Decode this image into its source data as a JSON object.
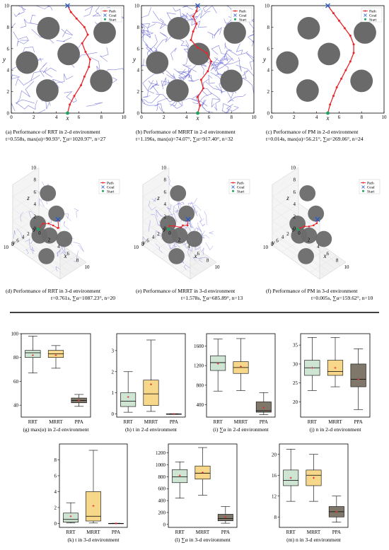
{
  "chart_data": [
    {
      "type": "scatter",
      "panel": "a",
      "style": "2d",
      "path": [
        [
          5,
          0
        ],
        [
          5.2,
          0.8
        ],
        [
          5.6,
          1.6
        ],
        [
          6.2,
          2.6
        ],
        [
          6.5,
          3.4
        ],
        [
          6.9,
          4.3
        ],
        [
          7.0,
          5.0
        ],
        [
          6.6,
          5.7
        ],
        [
          6.3,
          6.5
        ],
        [
          6.8,
          7.3
        ],
        [
          6.5,
          8.0
        ],
        [
          5.8,
          8.8
        ],
        [
          5.3,
          9.4
        ],
        [
          5,
          10
        ]
      ],
      "obstacles": [
        [
          3.3,
          7.9
        ],
        [
          8.3,
          7.5
        ],
        [
          1.4,
          4.7
        ],
        [
          5.1,
          5.5
        ],
        [
          8.0,
          3.0
        ],
        [
          3.2,
          2.1
        ]
      ],
      "radius": 1,
      "xlim": [
        0,
        10
      ],
      "ylim": [
        0,
        10
      ],
      "xticks": [
        0,
        2,
        4,
        6,
        8,
        10
      ],
      "yticks": [
        0,
        2,
        4,
        6,
        8,
        10
      ],
      "xlabel": "x",
      "ylabel": "y",
      "legend": [
        "Path",
        "Goal",
        "Start"
      ],
      "caption": "(a) Performance of RRT in 2-d environment",
      "caption2": "t=0.558s, max(α)=90.93°, ∑α=1020.97°, n=27"
    },
    {
      "type": "scatter",
      "panel": "b",
      "style": "2d",
      "path": [
        [
          5,
          0
        ],
        [
          5.2,
          0.7
        ],
        [
          5.0,
          1.5
        ],
        [
          5.5,
          2.3
        ],
        [
          5.3,
          3.1
        ],
        [
          5.9,
          3.9
        ],
        [
          6.2,
          4.8
        ],
        [
          5.8,
          5.6
        ],
        [
          5.0,
          6.1
        ],
        [
          4.4,
          6.8
        ],
        [
          4.6,
          7.6
        ],
        [
          4.9,
          8.3
        ],
        [
          4.6,
          9.0
        ],
        [
          4.9,
          9.5
        ],
        [
          5,
          10
        ]
      ],
      "obstacles": [
        [
          3.3,
          7.9
        ],
        [
          8.3,
          7.5
        ],
        [
          1.4,
          4.7
        ],
        [
          5.1,
          5.5
        ],
        [
          8.0,
          3.0
        ],
        [
          3.2,
          2.1
        ]
      ],
      "radius": 1,
      "xlim": [
        0,
        10
      ],
      "ylim": [
        0,
        10
      ],
      "xticks": [
        0,
        2,
        4,
        6,
        8,
        10
      ],
      "yticks": [
        0,
        2,
        4,
        6,
        8,
        10
      ],
      "xlabel": "x",
      "ylabel": "y",
      "legend": [
        "Path",
        "Goal",
        "Start"
      ],
      "caption": "(b) Performance of MRRT in 2-d environment",
      "caption2": "t=1.196s, max(α)=74.07°, ∑α=917.40°, n=32"
    },
    {
      "type": "scatter",
      "panel": "c",
      "style": "2d",
      "path": [
        [
          5,
          0
        ],
        [
          5.2,
          0.8
        ],
        [
          5.5,
          1.6
        ],
        [
          5.8,
          2.4
        ],
        [
          6.2,
          3.2
        ],
        [
          6.6,
          4.0
        ],
        [
          7.0,
          4.8
        ],
        [
          7.3,
          5.6
        ],
        [
          7.3,
          6.4
        ],
        [
          7.0,
          7.2
        ],
        [
          6.5,
          7.9
        ],
        [
          6.0,
          8.6
        ],
        [
          5.5,
          9.3
        ],
        [
          5,
          10
        ]
      ],
      "obstacles": [
        [
          3.3,
          7.9
        ],
        [
          8.3,
          7.5
        ],
        [
          1.4,
          4.7
        ],
        [
          5.1,
          5.5
        ],
        [
          8.0,
          3.0
        ],
        [
          3.2,
          2.1
        ]
      ],
      "radius": 1,
      "xlim": [
        0,
        10
      ],
      "ylim": [
        0,
        10
      ],
      "xticks": [
        0,
        2,
        4,
        6,
        8,
        10
      ],
      "yticks": [
        0,
        2,
        4,
        6,
        8,
        10
      ],
      "xlabel": "x",
      "ylabel": "y",
      "legend": [
        "Path",
        "Goal",
        "Start"
      ],
      "caption": "(c) Performance of PM in 2-d environment",
      "caption2": "t=0.014s, max(α)=56.21°, ∑α=269.06°, n=24"
    },
    {
      "type": "scatter",
      "panel": "d",
      "style": "3d",
      "path": [
        [
          1,
          2,
          1
        ],
        [
          2.5,
          3,
          3
        ],
        [
          4,
          3.5,
          4
        ],
        [
          5.5,
          4.5,
          4.8
        ],
        [
          7,
          5.5,
          5.5
        ],
        [
          8,
          7,
          6.5
        ],
        [
          9,
          9,
          9
        ]
      ],
      "spheres": [
        [
          3,
          2,
          8
        ],
        [
          7,
          6,
          8
        ],
        [
          2,
          4,
          3
        ],
        [
          5,
          5,
          3
        ],
        [
          7,
          3,
          3
        ],
        [
          4,
          7,
          3
        ],
        [
          6,
          8,
          1
        ]
      ],
      "radius": 1.2,
      "range": [
        0,
        10
      ],
      "ticks": [
        0,
        2,
        4,
        6,
        8,
        10
      ],
      "zticks": [
        0,
        2,
        4,
        6,
        8,
        10
      ],
      "xlabel": "x",
      "ylabel": "y",
      "zlabel": "z",
      "legend": [
        "Path",
        "Goal",
        "Start"
      ],
      "caption": "(d) Performance of RRT in 3-d environment",
      "caption2": "t=0.761s, ∑α=1087.23°, n=20"
    },
    {
      "type": "scatter",
      "panel": "e",
      "style": "3d",
      "path": [
        [
          1,
          2,
          1
        ],
        [
          2,
          3.5,
          2.5
        ],
        [
          3.5,
          4.2,
          3.5
        ],
        [
          5,
          4.5,
          4.2
        ],
        [
          6,
          5.6,
          5.4
        ],
        [
          7.5,
          6.5,
          6.5
        ],
        [
          9,
          9,
          9
        ]
      ],
      "spheres": [
        [
          3,
          2,
          8
        ],
        [
          7,
          6,
          8
        ],
        [
          2,
          4,
          3
        ],
        [
          5,
          5,
          3
        ],
        [
          7,
          3,
          3
        ],
        [
          4,
          7,
          3
        ],
        [
          6,
          8,
          1
        ]
      ],
      "radius": 1.2,
      "range": [
        0,
        10
      ],
      "ticks": [
        0,
        2,
        4,
        6,
        8,
        10
      ],
      "zticks": [
        0,
        2,
        4,
        6,
        8,
        10
      ],
      "xlabel": "x",
      "ylabel": "y",
      "zlabel": "z",
      "legend": [
        "Path",
        "Goal",
        "Start"
      ],
      "caption": "(e) Performance of MRRT in 3-d environment",
      "caption2": "t=1.578s, ∑α=685.89°, n=13"
    },
    {
      "type": "scatter",
      "panel": "f",
      "style": "3d",
      "path": [
        [
          1,
          2,
          1
        ],
        [
          2,
          3,
          2
        ],
        [
          3.5,
          4,
          3.4
        ],
        [
          5,
          5,
          4.5
        ],
        [
          6.5,
          6,
          5.8
        ],
        [
          8,
          7.5,
          7.4
        ],
        [
          9,
          9,
          9
        ]
      ],
      "spheres": [
        [
          3,
          2,
          8
        ],
        [
          7,
          6,
          8
        ],
        [
          2,
          4,
          3
        ],
        [
          5,
          5,
          3
        ],
        [
          7,
          3,
          3
        ],
        [
          4,
          7,
          3
        ],
        [
          6,
          8,
          1
        ]
      ],
      "radius": 1.2,
      "range": [
        0,
        10
      ],
      "ticks": [
        0,
        2,
        4,
        6,
        8,
        10
      ],
      "zticks": [
        0,
        2,
        4,
        6,
        8,
        10
      ],
      "xlabel": "x",
      "ylabel": "y",
      "zlabel": "z",
      "legend": [
        "Path",
        "Goal",
        "Start"
      ],
      "caption": "(f) Performance of PM in 3-d environment",
      "caption2": "t=0.005s, ∑α=159.62°, n=10"
    },
    {
      "type": "box",
      "panel": "g",
      "categories": [
        "RRT",
        "MRRT",
        "PPA"
      ],
      "ylim": [
        30,
        100
      ],
      "yticks": [
        40,
        60,
        80,
        100
      ],
      "boxes": [
        {
          "min": 67,
          "q1": 80,
          "median": 84,
          "q3": 86,
          "max": 98,
          "mean": 82
        },
        {
          "min": 71,
          "q1": 80,
          "median": 83,
          "q3": 86,
          "max": 90,
          "mean": 82
        },
        {
          "min": 39,
          "q1": 42,
          "median": 44,
          "q3": 46,
          "max": 49,
          "mean": 44
        }
      ],
      "caption": "(g) max(α) in 2-d environment"
    },
    {
      "type": "box",
      "panel": "h",
      "categories": [
        "RRT",
        "MRRT",
        "PPA"
      ],
      "ylim": [
        -0.15,
        3.8
      ],
      "yticks": [
        0,
        1,
        2,
        3
      ],
      "boxes": [
        {
          "min": 0.08,
          "q1": 0.35,
          "median": 0.6,
          "q3": 1.0,
          "max": 2.0,
          "mean": 0.8
        },
        {
          "min": 0.12,
          "q1": 0.4,
          "median": 0.95,
          "q3": 1.6,
          "max": 3.5,
          "mean": 1.4
        },
        {
          "min": -0.02,
          "q1": -0.01,
          "median": -0.005,
          "q3": 0.0,
          "max": 0.01,
          "mean": -0.005
        }
      ],
      "caption": "(h) t in 2-d environment"
    },
    {
      "type": "box",
      "panel": "i",
      "categories": [
        "RRT",
        "MRRT",
        "PPA"
      ],
      "ylim": [
        150,
        1850
      ],
      "yticks": [
        400,
        800,
        1200,
        1600
      ],
      "boxes": [
        {
          "min": 680,
          "q1": 1100,
          "median": 1260,
          "q3": 1400,
          "max": 1740,
          "mean": 1240
        },
        {
          "min": 690,
          "q1": 1040,
          "median": 1160,
          "q3": 1280,
          "max": 1750,
          "mean": 1180
        },
        {
          "min": 200,
          "q1": 250,
          "median": 280,
          "q3": 460,
          "max": 650,
          "mean": 340
        }
      ],
      "caption": "(i) ∑α in 2-d environment"
    },
    {
      "type": "box",
      "panel": "j",
      "categories": [
        "RRT",
        "MRRT",
        "PPA"
      ],
      "ylim": [
        16,
        38
      ],
      "yticks": [
        20,
        25,
        30,
        35
      ],
      "boxes": [
        {
          "min": 23,
          "q1": 27,
          "median": 29,
          "q3": 31,
          "max": 37,
          "mean": 29
        },
        {
          "min": 24,
          "q1": 27,
          "median": 28,
          "q3": 31,
          "max": 37,
          "mean": 29
        },
        {
          "min": 18,
          "q1": 24,
          "median": 26,
          "q3": 30,
          "max": 34,
          "mean": 26
        }
      ],
      "caption": "(j) n in 2-d environment"
    },
    {
      "type": "box",
      "panel": "k",
      "categories": [
        "RRT",
        "MRRT",
        "PPA"
      ],
      "ylim": [
        -0.5,
        10
      ],
      "yticks": [
        0,
        2,
        4,
        6,
        8
      ],
      "boxes": [
        {
          "min": 0.05,
          "q1": 0.15,
          "median": 0.5,
          "q3": 1.3,
          "max": 2.6,
          "mean": 0.9
        },
        {
          "min": 0.05,
          "q1": 0.3,
          "median": 0.9,
          "q3": 4.0,
          "max": 9.2,
          "mean": 2.2
        },
        {
          "min": -0.02,
          "q1": -0.01,
          "median": 0.0,
          "q3": 0.01,
          "max": 0.02,
          "mean": 0.0
        }
      ],
      "caption": "(k) t in 3-d environment"
    },
    {
      "type": "box",
      "panel": "l",
      "categories": [
        "RRT",
        "MRRT",
        "PPA"
      ],
      "ylim": [
        -50,
        1350
      ],
      "yticks": [
        0,
        200,
        400,
        600,
        800,
        1000,
        1200
      ],
      "boxes": [
        {
          "min": 440,
          "q1": 700,
          "median": 800,
          "q3": 920,
          "max": 1050,
          "mean": 820
        },
        {
          "min": 490,
          "q1": 760,
          "median": 860,
          "q3": 980,
          "max": 1290,
          "mean": 870
        },
        {
          "min": 20,
          "q1": 60,
          "median": 100,
          "q3": 170,
          "max": 300,
          "mean": 120
        }
      ],
      "caption": "(l) ∑α in 3-d environment"
    },
    {
      "type": "box",
      "panel": "m",
      "categories": [
        "RRT",
        "MRRT",
        "PPA"
      ],
      "ylim": [
        6,
        22
      ],
      "yticks": [
        8,
        12,
        16,
        20
      ],
      "boxes": [
        {
          "min": 11,
          "q1": 14,
          "median": 15,
          "q3": 17,
          "max": 21,
          "mean": 15.5
        },
        {
          "min": 11,
          "q1": 14,
          "median": 16,
          "q3": 17,
          "max": 20,
          "mean": 15.5
        },
        {
          "min": 7,
          "q1": 8,
          "median": 9,
          "q3": 10,
          "max": 12,
          "mean": 9
        }
      ],
      "caption": "(m) n in 3-d environment"
    }
  ],
  "colors": {
    "path": "#e8252b",
    "goal": "#1f5fd0",
    "start": "#20a060",
    "obstacle": "#6a6a6a",
    "tree": "#6b6bdb",
    "box_rrt": "#cfe5d4",
    "box_mrrt": "#f7d88b",
    "box_ppa": "#7f786a",
    "mean_marker": "#e8252b"
  }
}
